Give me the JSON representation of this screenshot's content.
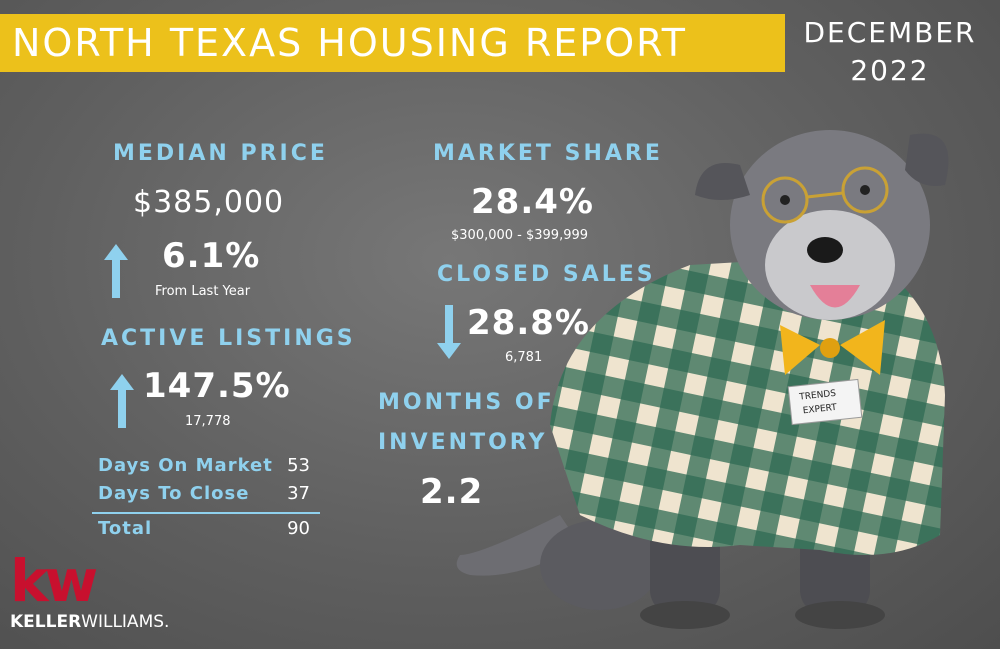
{
  "header": {
    "title": "NORTH TEXAS HOUSING REPORT",
    "month": "DECEMBER",
    "year": "2022"
  },
  "median_price": {
    "label": "MEDIAN PRICE",
    "value": "$385,000",
    "change": "6.1%",
    "change_note": "From Last Year",
    "direction": "up"
  },
  "active_listings": {
    "label": "ACTIVE LISTINGS",
    "change": "147.5%",
    "count": "17,778",
    "direction": "up"
  },
  "days": {
    "rows": [
      {
        "label": "Days On Market",
        "value": "53"
      },
      {
        "label": "Days To Close",
        "value": "37"
      }
    ],
    "total_label": "Total",
    "total_value": "90"
  },
  "market_share": {
    "label": "MARKET SHARE",
    "value": "28.4%",
    "range": "$300,000 - $399,999"
  },
  "closed_sales": {
    "label": "CLOSED SALES",
    "change": "28.8%",
    "count": "6,781",
    "direction": "down"
  },
  "months_inventory": {
    "label_line1": "MONTHS OF",
    "label_line2": "INVENTORY",
    "value": "2.2"
  },
  "badge": {
    "line1": "TRENDS",
    "line2": "EXPERT"
  },
  "logo": {
    "mark": "kw",
    "name_bold": "KELLER",
    "name_light": "WILLIAMS."
  },
  "colors": {
    "accent_yellow": "#ecc11b",
    "label_blue": "#8fd1ee",
    "logo_red": "#c8102e",
    "background": "#666666"
  }
}
